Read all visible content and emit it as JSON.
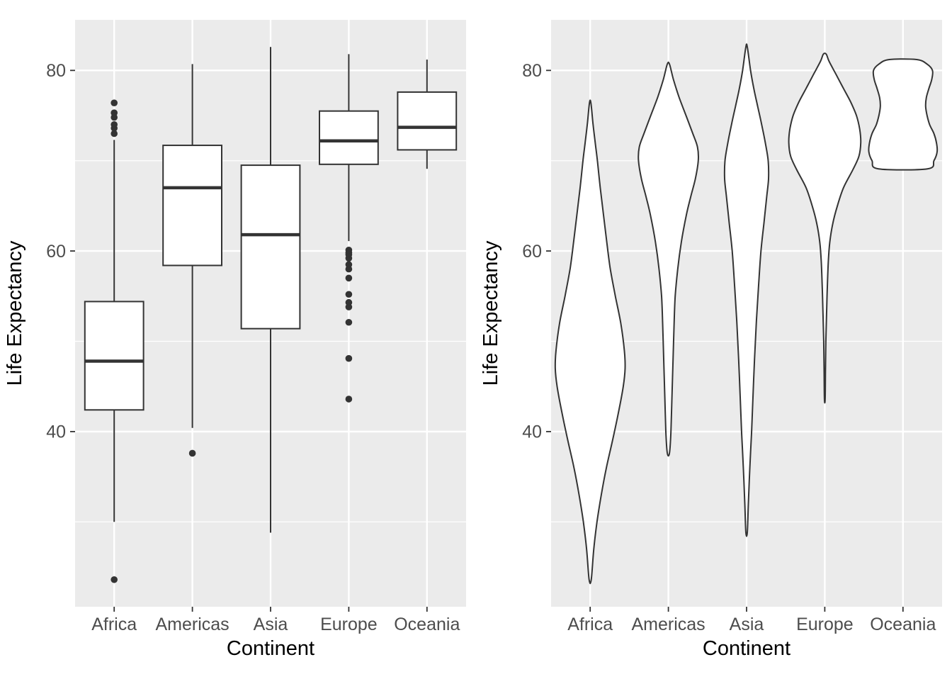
{
  "figure": {
    "background": "#FFFFFF",
    "panel_background": "#EBEBEB",
    "grid_color": "#FFFFFF",
    "geom_stroke_color": "#333333",
    "geom_fill_color": "#FFFFFF",
    "tick_color": "#333333",
    "axis_text_color": "#4D4D4D",
    "axis_title_color": "#000000"
  },
  "chart_data": [
    {
      "type": "boxplot",
      "title": "",
      "xlabel": "Continent",
      "ylabel": "Life Expectancy",
      "categories": [
        "Africa",
        "Americas",
        "Asia",
        "Europe",
        "Oceania"
      ],
      "ylim": [
        20.6,
        85.6
      ],
      "yticks": [
        40,
        60,
        80
      ],
      "yticks_minor": [
        30,
        50,
        70
      ],
      "grid": true,
      "legend": "none",
      "series": [
        {
          "category": "Africa",
          "whisker_low": 30.0,
          "q1": 42.4,
          "median": 47.8,
          "q3": 54.4,
          "whisker_high": 72.3,
          "outliers": [
            23.6,
            73.0,
            73.6,
            74.0,
            74.8,
            75.3,
            76.4
          ]
        },
        {
          "category": "Americas",
          "whisker_low": 40.4,
          "q1": 58.4,
          "median": 67.0,
          "q3": 71.7,
          "whisker_high": 80.7,
          "outliers": [
            37.6
          ]
        },
        {
          "category": "Asia",
          "whisker_low": 28.8,
          "q1": 51.4,
          "median": 61.8,
          "q3": 69.5,
          "whisker_high": 82.6,
          "outliers": []
        },
        {
          "category": "Europe",
          "whisker_low": 61.1,
          "q1": 69.6,
          "median": 72.2,
          "q3": 75.5,
          "whisker_high": 81.8,
          "outliers": [
            43.6,
            48.1,
            52.1,
            53.8,
            54.3,
            55.2,
            57.0,
            58.0,
            58.5,
            59.2,
            59.6,
            59.8,
            60.1
          ]
        },
        {
          "category": "Oceania",
          "whisker_low": 69.1,
          "q1": 71.2,
          "median": 73.7,
          "q3": 77.6,
          "whisker_high": 81.2,
          "outliers": []
        }
      ]
    },
    {
      "type": "violin",
      "title": "",
      "xlabel": "Continent",
      "ylabel": "Life Expectancy",
      "categories": [
        "Africa",
        "Americas",
        "Asia",
        "Europe",
        "Oceania"
      ],
      "ylim": [
        20.6,
        85.6
      ],
      "yticks": [
        40,
        60,
        80
      ],
      "yticks_minor": [
        30,
        50,
        70
      ],
      "grid": true,
      "legend": "none",
      "series": [
        {
          "category": "Africa",
          "range": [
            23.6,
            76.4
          ],
          "profile": [
            [
              23.6,
              0.03
            ],
            [
              27,
              0.1
            ],
            [
              30,
              0.19
            ],
            [
              33,
              0.31
            ],
            [
              36,
              0.45
            ],
            [
              39,
              0.62
            ],
            [
              42,
              0.78
            ],
            [
              45,
              0.92
            ],
            [
              47,
              0.97
            ],
            [
              49,
              0.95
            ],
            [
              52,
              0.85
            ],
            [
              55,
              0.7
            ],
            [
              58,
              0.56
            ],
            [
              61,
              0.46
            ],
            [
              64,
              0.37
            ],
            [
              67,
              0.28
            ],
            [
              70,
              0.2
            ],
            [
              72,
              0.14
            ],
            [
              74,
              0.08
            ],
            [
              76.4,
              0.02
            ]
          ]
        },
        {
          "category": "Americas",
          "range": [
            37.6,
            80.7
          ],
          "profile": [
            [
              37.6,
              0.03
            ],
            [
              40,
              0.07
            ],
            [
              44,
              0.1
            ],
            [
              48,
              0.13
            ],
            [
              52,
              0.16
            ],
            [
              55,
              0.19
            ],
            [
              58,
              0.26
            ],
            [
              61,
              0.36
            ],
            [
              64,
              0.5
            ],
            [
              66,
              0.62
            ],
            [
              68,
              0.75
            ],
            [
              70,
              0.83
            ],
            [
              71.5,
              0.81
            ],
            [
              73,
              0.68
            ],
            [
              75,
              0.49
            ],
            [
              77,
              0.3
            ],
            [
              79,
              0.14
            ],
            [
              80.7,
              0.03
            ]
          ]
        },
        {
          "category": "Asia",
          "range": [
            28.8,
            82.6
          ],
          "profile": [
            [
              28.8,
              0.02
            ],
            [
              32,
              0.05
            ],
            [
              36,
              0.09
            ],
            [
              40,
              0.14
            ],
            [
              44,
              0.18
            ],
            [
              48,
              0.22
            ],
            [
              52,
              0.27
            ],
            [
              56,
              0.33
            ],
            [
              60,
              0.4
            ],
            [
              63,
              0.48
            ],
            [
              66,
              0.56
            ],
            [
              68,
              0.61
            ],
            [
              70,
              0.6
            ],
            [
              72,
              0.52
            ],
            [
              74,
              0.42
            ],
            [
              76,
              0.31
            ],
            [
              78,
              0.2
            ],
            [
              80,
              0.11
            ],
            [
              82.6,
              0.02
            ]
          ]
        },
        {
          "category": "Europe",
          "range": [
            43.6,
            81.8
          ],
          "profile": [
            [
              43.6,
              0.01
            ],
            [
              47,
              0.02
            ],
            [
              50,
              0.03
            ],
            [
              53,
              0.05
            ],
            [
              56,
              0.07
            ],
            [
              59,
              0.1
            ],
            [
              61,
              0.14
            ],
            [
              63,
              0.22
            ],
            [
              65,
              0.35
            ],
            [
              67,
              0.52
            ],
            [
              69,
              0.78
            ],
            [
              70.5,
              0.95
            ],
            [
              72,
              1.0
            ],
            [
              73.5,
              0.97
            ],
            [
              75,
              0.88
            ],
            [
              76.5,
              0.72
            ],
            [
              78,
              0.52
            ],
            [
              79.5,
              0.32
            ],
            [
              81,
              0.12
            ],
            [
              81.8,
              0.04
            ]
          ]
        },
        {
          "category": "Oceania",
          "range": [
            69.1,
            81.2
          ],
          "profile": [
            [
              69.1,
              0.68
            ],
            [
              70,
              0.86
            ],
            [
              71,
              0.95
            ],
            [
              72,
              0.93
            ],
            [
              73,
              0.86
            ],
            [
              74,
              0.74
            ],
            [
              75,
              0.67
            ],
            [
              76,
              0.63
            ],
            [
              77,
              0.65
            ],
            [
              78,
              0.72
            ],
            [
              79,
              0.8
            ],
            [
              80,
              0.82
            ],
            [
              80.7,
              0.67
            ],
            [
              81.2,
              0.38
            ]
          ]
        }
      ]
    }
  ]
}
